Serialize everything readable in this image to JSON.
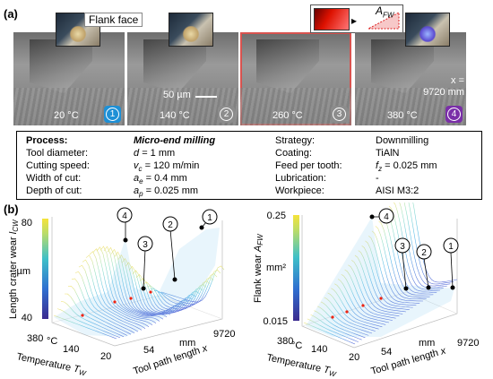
{
  "panel_a_label": "(a)",
  "panel_b_label": "(b)",
  "flank_face_label": "Flank face",
  "afw_label": "A",
  "afw_sub": "FW",
  "scale_bar_label": "50 µm",
  "x_label_line1": "x =",
  "x_label_line2": "9720 mm",
  "micrographs": [
    {
      "temp": "20 °C",
      "num": "1",
      "color": "#1e90d6"
    },
    {
      "temp": "140 °C",
      "num": "2",
      "color": "#8c8c8c"
    },
    {
      "temp": "260 °C",
      "num": "3",
      "color": "#8c8c8c"
    },
    {
      "temp": "380 °C",
      "num": "4",
      "color": "#7a2ea8"
    }
  ],
  "process": {
    "process_label": "Process:",
    "process_value": "Micro-end milling",
    "tool_diameter_label": "Tool diameter:",
    "tool_diameter_var": "d",
    "tool_diameter_value": "= 1 mm",
    "cutting_speed_label": "Cutting speed:",
    "cutting_speed_var": "v",
    "cutting_speed_sub": "c",
    "cutting_speed_value": "= 120 m/min",
    "width_label": "Width of cut:",
    "width_var": "a",
    "width_sub": "e",
    "width_value": "= 0.4 mm",
    "depth_label": "Depth of cut:",
    "depth_var": "a",
    "depth_sub": "p",
    "depth_value": "= 0.025 mm",
    "strategy_label": "Strategy:",
    "strategy_value": "Downmilling",
    "coating_label": "Coating:",
    "coating_value": "TiAlN",
    "feed_label": "Feed per tooth:",
    "feed_var": "f",
    "feed_sub": "z",
    "feed_value": "= 0.025 mm",
    "lubrication_label": "Lubrication:",
    "lubrication_value": "-",
    "workpiece_label": "Workpiece:",
    "workpiece_value": "AISI M3:2"
  },
  "chart_data": [
    {
      "type": "surface",
      "zlabel": "Length crater wear",
      "zlabel_var": "l",
      "zlabel_sub": "CW",
      "zunit": "µm",
      "zticks": [
        "40",
        "80"
      ],
      "zlim": [
        40,
        80
      ],
      "ylabel": "Temperature",
      "ylabel_var": "T",
      "ylabel_sub": "W",
      "yunit": "°C",
      "yticks": [
        "380",
        "140",
        "20"
      ],
      "xlabel": "Tool path length",
      "xlabel_var": "x",
      "xunit": "mm",
      "xticks": [
        "54",
        "9720"
      ],
      "markers": [
        "4",
        "3",
        "2",
        "1"
      ]
    },
    {
      "type": "surface",
      "zlabel": "Flank wear",
      "zlabel_var": "A",
      "zlabel_sub": "FW",
      "zunit": "mm²",
      "zticks": [
        "0.015",
        "0.25"
      ],
      "zlim": [
        0.015,
        0.25
      ],
      "ylabel": "Temperature",
      "ylabel_var": "T",
      "ylabel_sub": "W",
      "yunit": "°C",
      "yticks": [
        "380",
        "140",
        "20"
      ],
      "xlabel": "Tool path length",
      "xlabel_var": "x",
      "xunit": "mm",
      "xticks": [
        "54",
        "9720"
      ],
      "markers": [
        "4",
        "3",
        "2",
        "1"
      ]
    }
  ]
}
